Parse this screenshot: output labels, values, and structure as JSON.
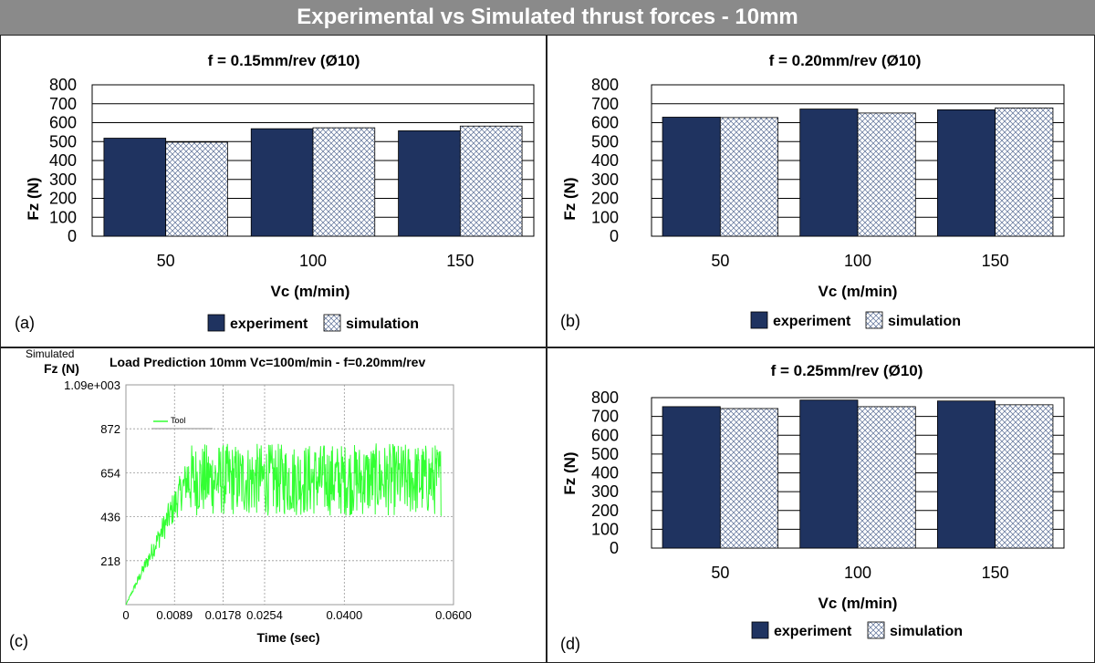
{
  "main_title": "Experimental vs Simulated thrust forces - 10mm",
  "colors": {
    "experiment": "#1f3360",
    "simulation_hatch": "#5a6e96",
    "trace": "#33ff33"
  },
  "chart_data": [
    {
      "type": "bar",
      "panel_label": "(a)",
      "title": "f = 0.15mm/rev (Ø10)",
      "xlabel": "Vc (m/min)",
      "ylabel": "Fz (N)",
      "ylim": [
        0,
        800
      ],
      "yticks": [
        "0",
        "100",
        "200",
        "300",
        "400",
        "500",
        "600",
        "700",
        "800"
      ],
      "categories": [
        "50",
        "100",
        "150"
      ],
      "series": [
        {
          "name": "experiment",
          "values": [
            518,
            568,
            557
          ]
        },
        {
          "name": "simulation",
          "values": [
            497,
            573,
            582
          ]
        }
      ],
      "legend_position": "bottom"
    },
    {
      "type": "bar",
      "panel_label": "(b)",
      "title": "f = 0.20mm/rev (Ø10)",
      "xlabel": "Vc (m/min)",
      "ylabel": "Fz (N)",
      "ylim": [
        0,
        800
      ],
      "yticks": [
        "0",
        "100",
        "200",
        "300",
        "400",
        "500",
        "600",
        "700",
        "800"
      ],
      "categories": [
        "50",
        "100",
        "150"
      ],
      "series": [
        {
          "name": "experiment",
          "values": [
            629,
            672,
            668
          ]
        },
        {
          "name": "simulation",
          "values": [
            627,
            651,
            678
          ]
        }
      ],
      "legend_position": "bottom"
    },
    {
      "type": "line",
      "panel_label": "(c)",
      "title": "Load Prediction 10mm  Vc=100m/min - f=0.20mm/rev",
      "ylabel_line1": "Simulated",
      "ylabel_line2": "Fz (N)",
      "xlabel": "Time (sec)",
      "xlim": [
        0,
        0.06
      ],
      "ylim": [
        0,
        1090
      ],
      "xticks": [
        "0",
        "0.0089",
        "0.0178",
        "0.0254",
        "0.0400",
        "0.0600"
      ],
      "yticks": [
        "218",
        "436",
        "654",
        "872",
        "1.09e+003"
      ],
      "series": [
        {
          "name": "Tool"
        }
      ],
      "ramp_end_x": 0.0112,
      "mean_steady_y": 620,
      "noise_amplitude": 180
    },
    {
      "type": "bar",
      "panel_label": "(d)",
      "title": "f = 0.25mm/rev (Ø10)",
      "xlabel": "Vc (m/min)",
      "ylabel": "Fz (N)",
      "ylim": [
        0,
        800
      ],
      "yticks": [
        "0",
        "100",
        "200",
        "300",
        "400",
        "500",
        "600",
        "700",
        "800"
      ],
      "categories": [
        "50",
        "100",
        "150"
      ],
      "series": [
        {
          "name": "experiment",
          "values": [
            752,
            787,
            782
          ]
        },
        {
          "name": "simulation",
          "values": [
            742,
            752,
            762
          ]
        }
      ],
      "legend_position": "bottom"
    }
  ]
}
